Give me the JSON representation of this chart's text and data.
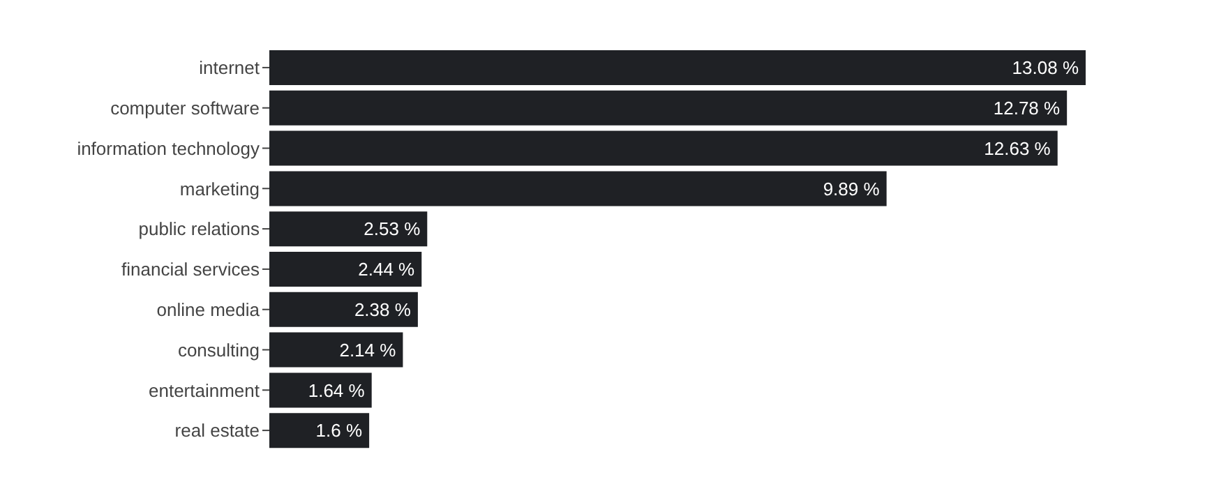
{
  "chart_data": {
    "type": "bar",
    "orientation": "horizontal",
    "categories": [
      "internet",
      "computer software",
      "information technology",
      "marketing",
      "public relations",
      "financial services",
      "online media",
      "consulting",
      "entertainment",
      "real estate"
    ],
    "values": [
      13.08,
      12.78,
      12.63,
      9.89,
      2.53,
      2.44,
      2.38,
      2.14,
      1.64,
      1.6
    ],
    "value_labels": [
      "13.08 %",
      "12.78 %",
      "12.63 %",
      "9.89 %",
      "2.53 %",
      "2.44 %",
      "2.38 %",
      "2.14 %",
      "1.64 %",
      "1.6 %"
    ],
    "color": "#1f2125",
    "grid": false,
    "legend": false
  }
}
